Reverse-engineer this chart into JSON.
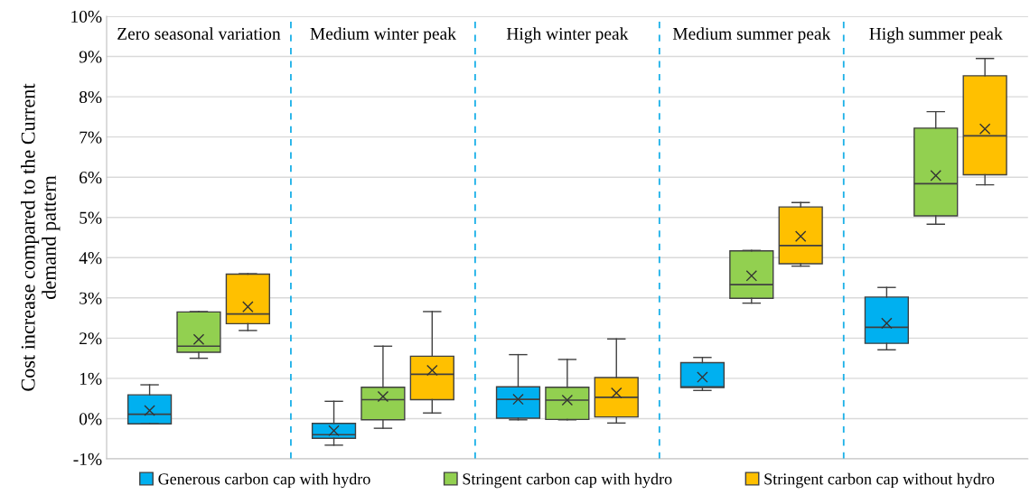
{
  "chart_data": {
    "type": "box",
    "ylabel": "Cost increase compared to the Current\ndemand pattern",
    "categories": [
      "Zero seasonal variation",
      "Medium winter peak",
      "High winter peak",
      "Medium summer peak",
      "High summer peak"
    ],
    "ylim": [
      -1,
      10
    ],
    "yticks": [
      {
        "value": -1,
        "label": "-1%"
      },
      {
        "value": 0,
        "label": "0%"
      },
      {
        "value": 1,
        "label": "1%"
      },
      {
        "value": 2,
        "label": "2%"
      },
      {
        "value": 3,
        "label": "3%"
      },
      {
        "value": 4,
        "label": "4%"
      },
      {
        "value": 5,
        "label": "5%"
      },
      {
        "value": 6,
        "label": "6%"
      },
      {
        "value": 7,
        "label": "7%"
      },
      {
        "value": 8,
        "label": "8%"
      },
      {
        "value": 9,
        "label": "9%"
      },
      {
        "value": 10,
        "label": "10%"
      }
    ],
    "grid": "y",
    "legend": "bottom",
    "series": [
      {
        "name": "Generous carbon cap with hydro",
        "color": "#00b0f0",
        "boxes": [
          {
            "low": -0.13,
            "q1": -0.13,
            "median": 0.11,
            "q3": 0.59,
            "high": 0.84,
            "mean": 0.2
          },
          {
            "low": -0.66,
            "q1": -0.49,
            "median": -0.4,
            "q3": -0.12,
            "high": 0.43,
            "mean": -0.3
          },
          {
            "low": -0.03,
            "q1": 0.01,
            "median": 0.48,
            "q3": 0.79,
            "high": 1.59,
            "mean": 0.48
          },
          {
            "low": 0.7,
            "q1": 0.77,
            "median": 0.79,
            "q3": 1.39,
            "high": 1.52,
            "mean": 1.03
          },
          {
            "low": 1.71,
            "q1": 1.87,
            "median": 2.27,
            "q3": 3.02,
            "high": 3.26,
            "mean": 2.37
          }
        ]
      },
      {
        "name": "Stringent carbon cap with hydro",
        "color": "#92d050",
        "boxes": [
          {
            "low": 1.5,
            "q1": 1.65,
            "median": 1.8,
            "q3": 2.65,
            "high": 2.66,
            "mean": 1.97
          },
          {
            "low": -0.24,
            "q1": -0.03,
            "median": 0.47,
            "q3": 0.78,
            "high": 1.8,
            "mean": 0.55
          },
          {
            "low": -0.03,
            "q1": -0.02,
            "median": 0.46,
            "q3": 0.78,
            "high": 1.47,
            "mean": 0.46
          },
          {
            "low": 2.87,
            "q1": 2.99,
            "median": 3.33,
            "q3": 4.17,
            "high": 4.18,
            "mean": 3.55
          },
          {
            "low": 4.83,
            "q1": 5.04,
            "median": 5.84,
            "q3": 7.22,
            "high": 7.63,
            "mean": 6.04
          }
        ]
      },
      {
        "name": "Stringent carbon cap without hydro",
        "color": "#ffc000",
        "boxes": [
          {
            "low": 2.19,
            "q1": 2.36,
            "median": 2.6,
            "q3": 3.59,
            "high": 3.6,
            "mean": 2.78
          },
          {
            "low": 0.14,
            "q1": 0.47,
            "median": 1.1,
            "q3": 1.55,
            "high": 2.66,
            "mean": 1.2
          },
          {
            "low": -0.11,
            "q1": 0.04,
            "median": 0.53,
            "q3": 1.02,
            "high": 1.98,
            "mean": 0.64
          },
          {
            "low": 3.79,
            "q1": 3.85,
            "median": 4.3,
            "q3": 5.26,
            "high": 5.37,
            "mean": 4.53
          },
          {
            "low": 5.81,
            "q1": 6.06,
            "median": 7.03,
            "q3": 8.52,
            "high": 8.95,
            "mean": 7.2
          }
        ]
      }
    ]
  }
}
